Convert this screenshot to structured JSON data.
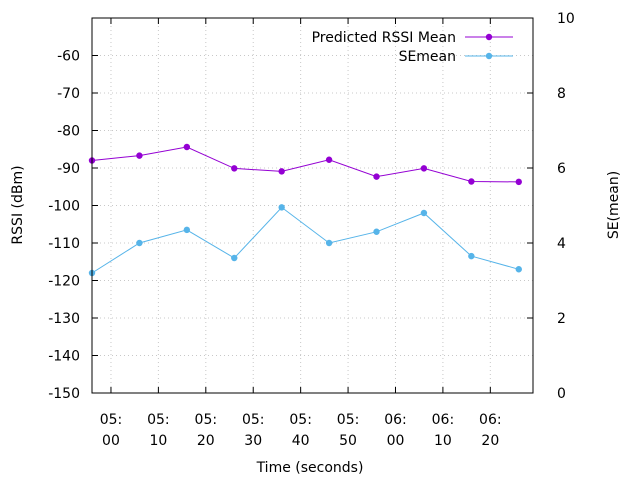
{
  "chart_data": {
    "type": "line",
    "xlabel": "Time (seconds)",
    "ylabel": "RSSI (dBm)",
    "y2label": "SE(mean)",
    "xlim": [
      "04:56",
      "05:89"
    ],
    "ylim": [
      -150,
      -50
    ],
    "y2lim": [
      0,
      10
    ],
    "grid": true,
    "legend_position": "top-right",
    "x_tick_labels": [
      [
        "05:",
        "00"
      ],
      [
        "05:",
        "10"
      ],
      [
        "05:",
        "20"
      ],
      [
        "05:",
        "30"
      ],
      [
        "05:",
        "40"
      ],
      [
        "05:",
        "50"
      ],
      [
        "06:",
        "00"
      ],
      [
        "06:",
        "10"
      ],
      [
        "06:",
        "20"
      ]
    ],
    "y_ticks": [
      -60,
      -70,
      -80,
      -90,
      -100,
      -110,
      -120,
      -130,
      -140,
      -150
    ],
    "y2_ticks": [
      0,
      2,
      4,
      6,
      8,
      10
    ],
    "series": [
      {
        "name": "Predicted RSSI Mean",
        "axis": "left",
        "color": "#9400d3",
        "x": [
          "04:56",
          "05:06",
          "05:16",
          "05:26",
          "05:36",
          "05:46",
          "05:56",
          "06:06",
          "06:16",
          "06:26"
        ],
        "values": [
          -88.0,
          -86.7,
          -84.4,
          -90.1,
          -90.9,
          -87.8,
          -92.3,
          -90.1,
          -93.6,
          -93.7
        ]
      },
      {
        "name": "SEmean",
        "axis": "right",
        "color": "#56b4e9",
        "x": [
          "04:56",
          "05:06",
          "05:16",
          "05:26",
          "05:36",
          "05:46",
          "05:56",
          "06:06",
          "06:16",
          "06:26"
        ],
        "values": [
          3.2,
          4.0,
          4.35,
          3.6,
          4.95,
          4.0,
          4.3,
          4.8,
          3.65,
          3.3
        ]
      }
    ]
  }
}
